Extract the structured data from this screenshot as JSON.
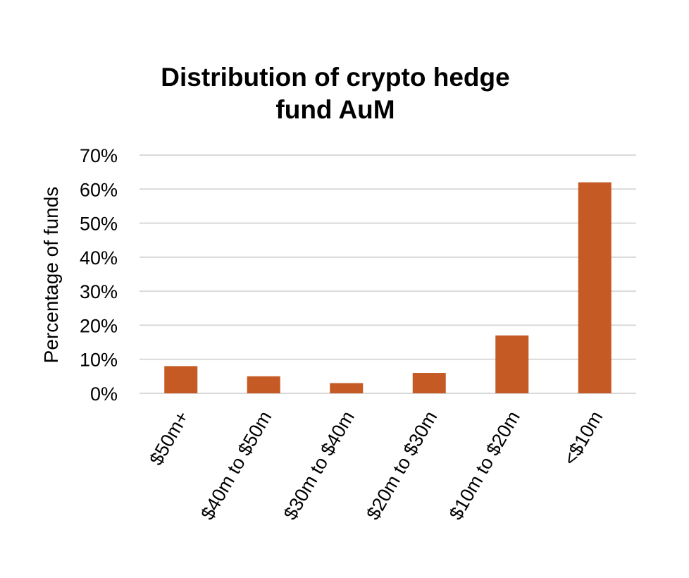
{
  "chart_data": {
    "type": "bar",
    "title_lines": [
      "Distribution of crypto hedge",
      "fund AuM"
    ],
    "xlabel": "",
    "ylabel": "Percentage of funds",
    "categories": [
      "$50m+",
      "$40m to $50m",
      "$30m to $40m",
      "$20m to $30m",
      "$10m to $20m",
      "<$10m"
    ],
    "values": [
      8,
      5,
      3,
      6,
      17,
      62
    ],
    "ylim": [
      0,
      70
    ],
    "yticks": [
      0,
      10,
      20,
      30,
      40,
      50,
      60,
      70
    ],
    "ytick_labels": [
      "0%",
      "10%",
      "20%",
      "30%",
      "40%",
      "50%",
      "60%",
      "70%"
    ],
    "grid": true,
    "legend": "none",
    "bar_color": "#c55a24",
    "grid_color": "#d9d9d9"
  }
}
